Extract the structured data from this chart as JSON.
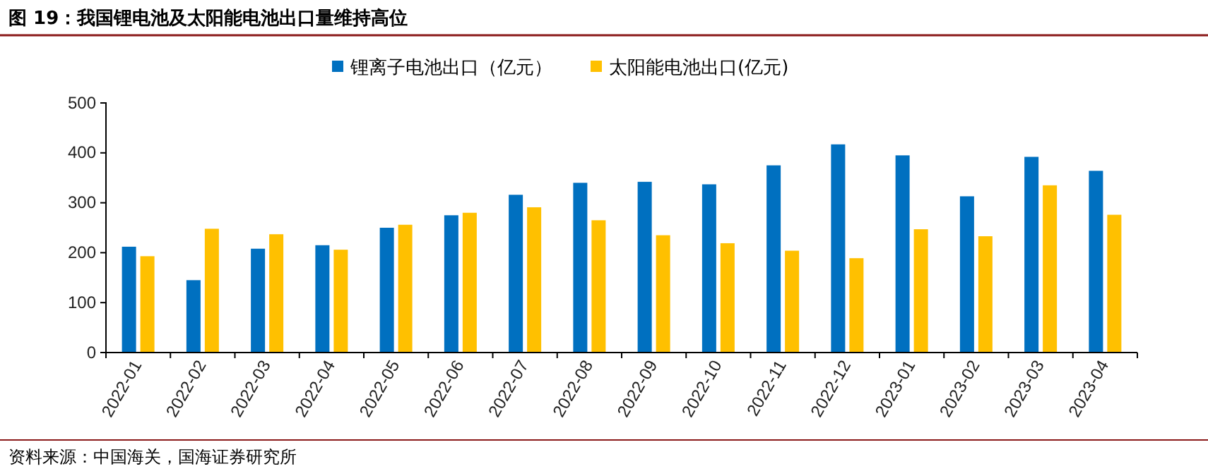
{
  "chart_data": {
    "type": "bar",
    "title": "图 19：我国锂电池及太阳能电池出口量维持高位",
    "annotations": [
      "资料来源：中国海关，国海证券研究所"
    ],
    "categories": [
      "2022-01",
      "2022-02",
      "2022-03",
      "2022-04",
      "2022-05",
      "2022-06",
      "2022-07",
      "2022-08",
      "2022-09",
      "2022-10",
      "2022-11",
      "2022-12",
      "2023-01",
      "2023-02",
      "2023-03",
      "2023-04"
    ],
    "series": [
      {
        "name": "锂离子电池出口（亿元）",
        "color": "#0070c0",
        "values": [
          212,
          145,
          208,
          215,
          250,
          275,
          316,
          340,
          342,
          337,
          375,
          417,
          395,
          313,
          392,
          364
        ]
      },
      {
        "name": "太阳能电池出口(亿元)",
        "color": "#ffc000",
        "values": [
          193,
          248,
          237,
          206,
          256,
          280,
          291,
          265,
          235,
          219,
          204,
          189,
          247,
          233,
          335,
          276
        ]
      }
    ],
    "ylim": [
      0,
      500
    ],
    "yticks": [
      0,
      100,
      200,
      300,
      400,
      500
    ],
    "grid": false,
    "legend": "top"
  }
}
